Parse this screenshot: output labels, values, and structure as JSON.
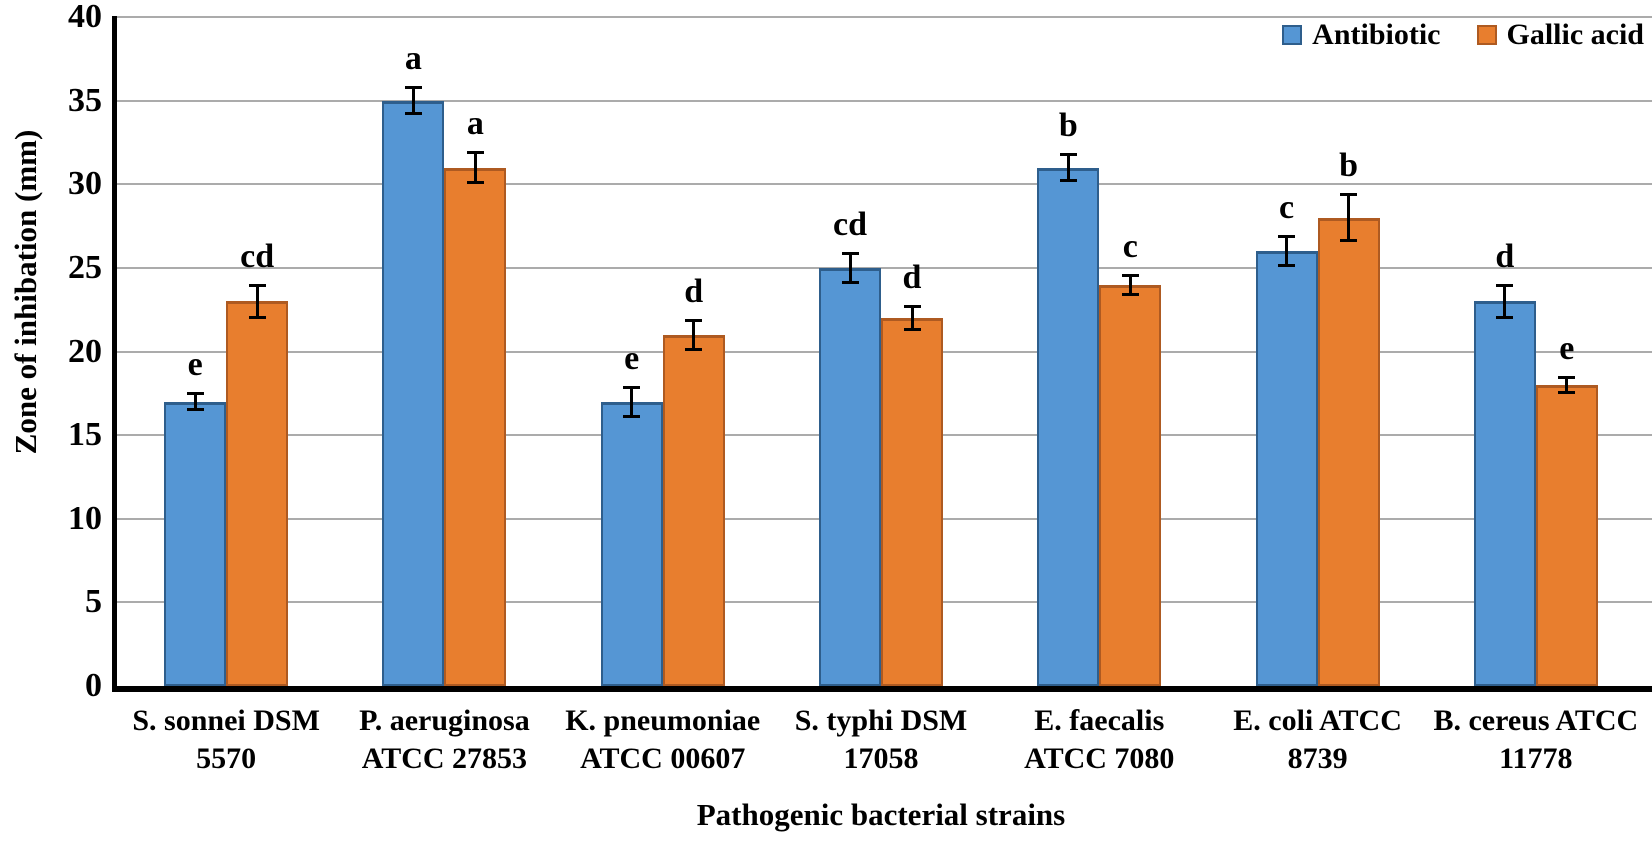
{
  "chart_data": {
    "type": "bar",
    "title": "",
    "xlabel": "Pathogenic bacterial strains",
    "ylabel": "Zone of inhibation (mm)",
    "ylim": [
      0,
      40
    ],
    "yticks": [
      0,
      5,
      10,
      15,
      20,
      25,
      30,
      35,
      40
    ],
    "grid": true,
    "grid_color": "#ABABAB",
    "axis_color": "#000000",
    "legend_position": "top-right",
    "categories": [
      "S. sonnei DSM 5570",
      "P. aeruginosa ATCC 27853",
      "K. pneumoniae ATCC 00607",
      "S. typhi DSM 17058",
      "E. faecalis ATCC 7080",
      "E. coli  ATCC 8739",
      "B. cereus ATCC 11778"
    ],
    "category_lines": [
      [
        "S. sonnei DSM",
        "5570"
      ],
      [
        "P. aeruginosa",
        "ATCC 27853"
      ],
      [
        "K. pneumoniae",
        "ATCC 00607"
      ],
      [
        "S. typhi DSM",
        "17058"
      ],
      [
        "E. faecalis",
        "ATCC 7080"
      ],
      [
        "E. coli  ATCC",
        "8739"
      ],
      [
        "B. cereus ATCC",
        "11778"
      ]
    ],
    "series": [
      {
        "name": "Antibiotic",
        "color": "#5596D4",
        "border_color": "#2E5E8C",
        "values": [
          17,
          35,
          17,
          25,
          31,
          26,
          23
        ],
        "errors": [
          0.5,
          0.8,
          0.9,
          0.9,
          0.8,
          0.9,
          1.0
        ],
        "letters": [
          "e",
          "a",
          "e",
          "cd",
          "b",
          "c",
          "d"
        ]
      },
      {
        "name": "Gallic acid",
        "color": "#E87E2E",
        "border_color": "#AE5A21",
        "values": [
          23,
          31,
          21,
          22,
          24,
          28,
          18
        ],
        "errors": [
          1.0,
          0.9,
          0.9,
          0.7,
          0.6,
          1.4,
          0.5
        ],
        "letters": [
          "cd",
          "a",
          "d",
          "d",
          "c",
          "b",
          "e"
        ]
      }
    ]
  }
}
